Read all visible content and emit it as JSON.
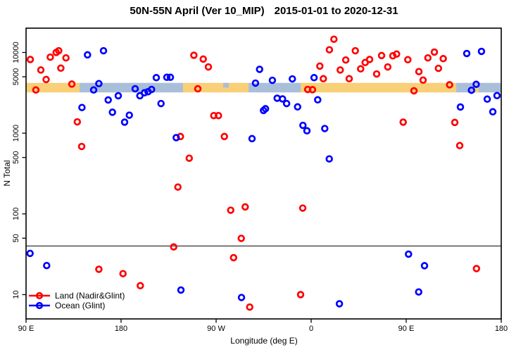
{
  "title": {
    "main": "50N-55N April (Ver 10_MIP)",
    "dates": "2015-01-01 to 2020-12-31"
  },
  "chart_data": {
    "type": "scatter",
    "title": "50N-55N April (Ver 10_MIP)  2015-01-01 to 2020-12-31",
    "xlabel": "Longitude (deg E)",
    "ylabel": "N Total",
    "x_axis": {
      "lim": [
        90,
        540
      ],
      "ticks": [
        {
          "value": 90,
          "label": "90 E"
        },
        {
          "value": 180,
          "label": "180"
        },
        {
          "value": 270,
          "label": "90 W"
        },
        {
          "value": 360,
          "label": "0"
        },
        {
          "value": 450,
          "label": "90 E"
        },
        {
          "value": 540,
          "label": "180"
        }
      ]
    },
    "y_axis": {
      "scale": "log",
      "lim": [
        5,
        20000
      ],
      "ticks": [
        {
          "value": 10,
          "label": "10"
        },
        {
          "value": 50,
          "label": "50"
        },
        {
          "value": 100,
          "label": "100"
        },
        {
          "value": 500,
          "label": "500"
        },
        {
          "value": 1000,
          "label": "1000"
        },
        {
          "value": 5000,
          "label": "5000"
        },
        {
          "value": 10000,
          "label": "10000"
        }
      ]
    },
    "colors": {
      "land": "#FF0000",
      "ocean": "#0000FF",
      "band_land": "#F9CF77",
      "band_ocean": "#A9BFD9",
      "threshold_line": "#5A5A5A"
    },
    "threshold_line": {
      "value": 40
    },
    "band": {
      "n_range": [
        3200,
        4200
      ],
      "segments": [
        {
          "from": 90,
          "to": 140.7,
          "color_key": "band_land"
        },
        {
          "from": 140.7,
          "to": 238.7,
          "color_key": "band_ocean"
        },
        {
          "from": 238.7,
          "to": 300.7,
          "color_key": "band_land"
        },
        {
          "from": 300.7,
          "to": 350,
          "color_key": "band_ocean"
        },
        {
          "from": 350,
          "to": 497.3,
          "color_key": "band_land"
        },
        {
          "from": 497.3,
          "to": 540,
          "color_key": "band_ocean"
        }
      ],
      "patches": [
        {
          "from": 276.7,
          "to": 282,
          "color_key": "band_ocean",
          "half": "top"
        },
        {
          "from": 514,
          "to": 518.7,
          "color_key": "band_land",
          "half": "bottom"
        }
      ]
    },
    "legend": {
      "position": "bottom-left"
    },
    "series": [
      {
        "name": "Land (Nadir&Glint)",
        "color_key": "land",
        "points": [
          [
            94,
            8180
          ],
          [
            99.3,
            3430
          ],
          [
            104,
            6070
          ],
          [
            109,
            4630
          ],
          [
            112.9,
            8750
          ],
          [
            118.5,
            10000
          ],
          [
            120.9,
            10500
          ],
          [
            122.9,
            6390
          ],
          [
            127.8,
            8570
          ],
          [
            133.3,
            4060
          ],
          [
            138.5,
            1380
          ],
          [
            142.7,
            684
          ],
          [
            158.9,
            20.6
          ],
          [
            181.8,
            18.2
          ],
          [
            198.2,
            12.9
          ],
          [
            229.8,
            39
          ],
          [
            233.8,
            215
          ],
          [
            236.2,
            910
          ],
          [
            244.5,
            490
          ],
          [
            248.9,
            9230
          ],
          [
            252.7,
            3550
          ],
          [
            257.8,
            8280
          ],
          [
            262.7,
            6610
          ],
          [
            267.8,
            1650
          ],
          [
            272.2,
            1650
          ],
          [
            277.8,
            910
          ],
          [
            283.8,
            111
          ],
          [
            286.5,
            28.7
          ],
          [
            293.8,
            49.7
          ],
          [
            297.5,
            122
          ],
          [
            301.8,
            7
          ],
          [
            350,
            10
          ],
          [
            352,
            118
          ],
          [
            356.7,
            3480
          ],
          [
            361.3,
            3460
          ],
          [
            368.2,
            6780
          ],
          [
            371.5,
            4730
          ],
          [
            377.3,
            10800
          ],
          [
            381.5,
            14600
          ],
          [
            387.5,
            6070
          ],
          [
            392.7,
            8070
          ],
          [
            396,
            4730
          ],
          [
            401.8,
            10500
          ],
          [
            406.9,
            6260
          ],
          [
            411.1,
            7500
          ],
          [
            415.3,
            8180
          ],
          [
            422,
            5410
          ],
          [
            426.7,
            9160
          ],
          [
            432.5,
            6610
          ],
          [
            437.3,
            9080
          ],
          [
            440.9,
            9560
          ],
          [
            447.1,
            1370
          ],
          [
            451.5,
            8130
          ],
          [
            457.3,
            3350
          ],
          [
            462,
            5790
          ],
          [
            466,
            4540
          ],
          [
            470.5,
            8570
          ],
          [
            476.7,
            10100
          ],
          [
            480.5,
            6350
          ],
          [
            485.1,
            8380
          ],
          [
            491.1,
            3980
          ],
          [
            496,
            1360
          ],
          [
            500.7,
            702
          ],
          [
            516.5,
            21
          ]
        ]
      },
      {
        "name": "Ocean (Glint)",
        "color_key": "ocean",
        "points": [
          [
            93.8,
            32.4
          ],
          [
            109.5,
            22.9
          ],
          [
            142.9,
            2080
          ],
          [
            148.2,
            9340
          ],
          [
            154,
            3430
          ],
          [
            158.9,
            4110
          ],
          [
            163.3,
            10500
          ],
          [
            167.8,
            2580
          ],
          [
            171.8,
            1820
          ],
          [
            177.3,
            2910
          ],
          [
            183.3,
            1370
          ],
          [
            187.8,
            1670
          ],
          [
            193.3,
            3550
          ],
          [
            197.8,
            2910
          ],
          [
            202.2,
            3170
          ],
          [
            205.5,
            3260
          ],
          [
            208.9,
            3480
          ],
          [
            213.3,
            4870
          ],
          [
            217.8,
            2330
          ],
          [
            223.3,
            4920
          ],
          [
            226.7,
            4920
          ],
          [
            232.2,
            880
          ],
          [
            236.7,
            11.4
          ],
          [
            294,
            9.2
          ],
          [
            304,
            857
          ],
          [
            307.3,
            4170
          ],
          [
            311.1,
            6180
          ],
          [
            314.9,
            1910
          ],
          [
            316.7,
            2010
          ],
          [
            323.3,
            4520
          ],
          [
            327.8,
            2710
          ],
          [
            332.9,
            2660
          ],
          [
            336.7,
            2330
          ],
          [
            342.2,
            4700
          ],
          [
            347.1,
            2120
          ],
          [
            352.2,
            1250
          ],
          [
            356,
            1070
          ],
          [
            362.7,
            4870
          ],
          [
            366.2,
            2590
          ],
          [
            372.9,
            1140
          ],
          [
            377.1,
            480
          ],
          [
            386.7,
            7.7
          ],
          [
            452.2,
            31.7
          ],
          [
            461.8,
            10.8
          ],
          [
            467.3,
            22.8
          ],
          [
            501.3,
            2110
          ],
          [
            507.3,
            9700
          ],
          [
            511.8,
            3400
          ],
          [
            516.3,
            4030
          ],
          [
            521.3,
            10300
          ],
          [
            526.7,
            2640
          ],
          [
            532,
            1840
          ],
          [
            536,
            2920
          ]
        ]
      }
    ]
  }
}
